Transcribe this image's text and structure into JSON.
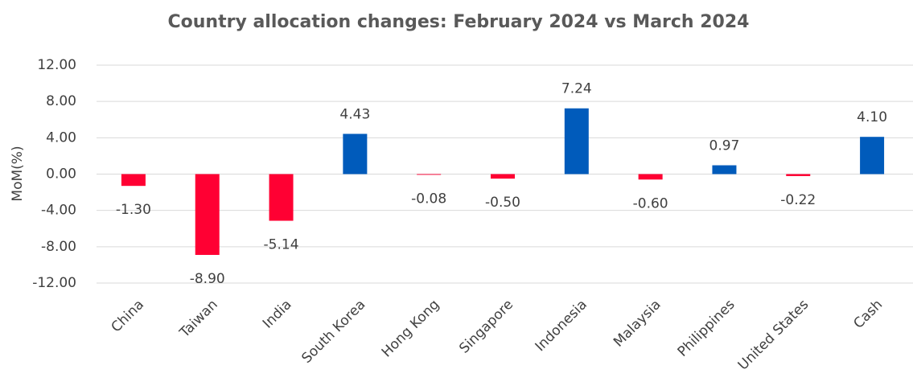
{
  "chart_data": {
    "type": "bar",
    "title": "Country allocation changes: February 2024 vs March 2024",
    "y_label": "MoM(%)",
    "categories": [
      "China",
      "Taiwan",
      "India",
      "South Korea",
      "Hong Kong",
      "Singapore",
      "Indonesia",
      "Malaysia",
      "Philippines",
      "United States",
      "Cash"
    ],
    "values": [
      -1.3,
      -8.9,
      -5.14,
      4.43,
      -0.08,
      -0.5,
      7.24,
      -0.6,
      0.97,
      -0.22,
      4.1
    ],
    "value_labels": [
      "-1.30",
      "-8.90",
      "-5.14",
      "4.43",
      "-0.08",
      "-0.50",
      "7.24",
      "-0.60",
      "0.97",
      "-0.22",
      "4.10"
    ],
    "positive_color": "#005bbb",
    "negative_color": "#ff0033",
    "ylim": [
      -12,
      12
    ],
    "yticks": [
      {
        "value": -12,
        "label": "-12.00"
      },
      {
        "value": -8,
        "label": "-8.00"
      },
      {
        "value": -4,
        "label": "-4.00"
      },
      {
        "value": 0,
        "label": "0.00"
      },
      {
        "value": 4,
        "label": "4.00"
      },
      {
        "value": 8,
        "label": "8.00"
      },
      {
        "value": 12,
        "label": "12.00"
      }
    ],
    "grid": true
  }
}
